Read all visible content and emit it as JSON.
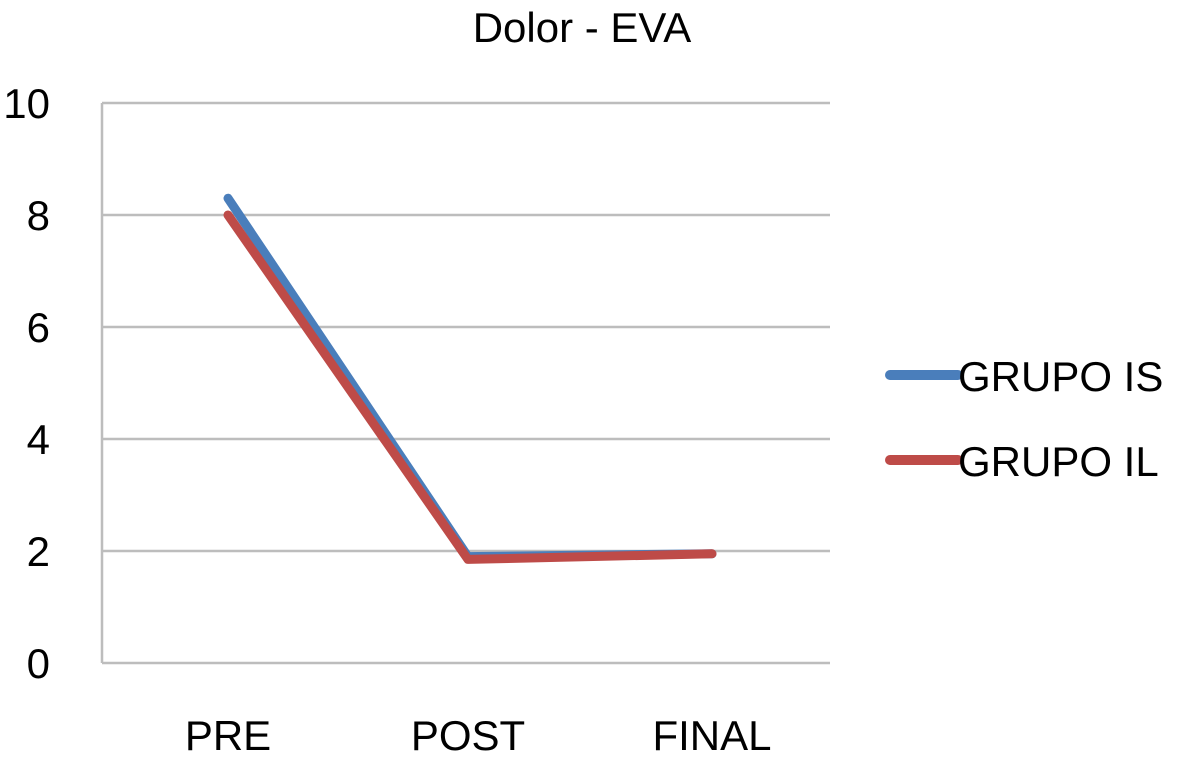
{
  "chart_data": {
    "type": "line",
    "title": "Dolor - EVA",
    "xlabel": "",
    "ylabel": "",
    "categories": [
      "PRE",
      "POST",
      "FINAL"
    ],
    "ylim": [
      0,
      10
    ],
    "yticks": [
      0,
      2,
      4,
      6,
      8,
      10
    ],
    "ytick_labels": [
      "0",
      "2",
      "4",
      "6",
      "8",
      "10"
    ],
    "grid": true,
    "legend_position": "right",
    "series": [
      {
        "name": "GRUPO IS",
        "values": [
          8.3,
          1.9,
          1.95
        ],
        "color": "#4a7ebb"
      },
      {
        "name": "GRUPO IL",
        "values": [
          8.0,
          1.85,
          1.95
        ],
        "color": "#be4b48"
      }
    ]
  }
}
